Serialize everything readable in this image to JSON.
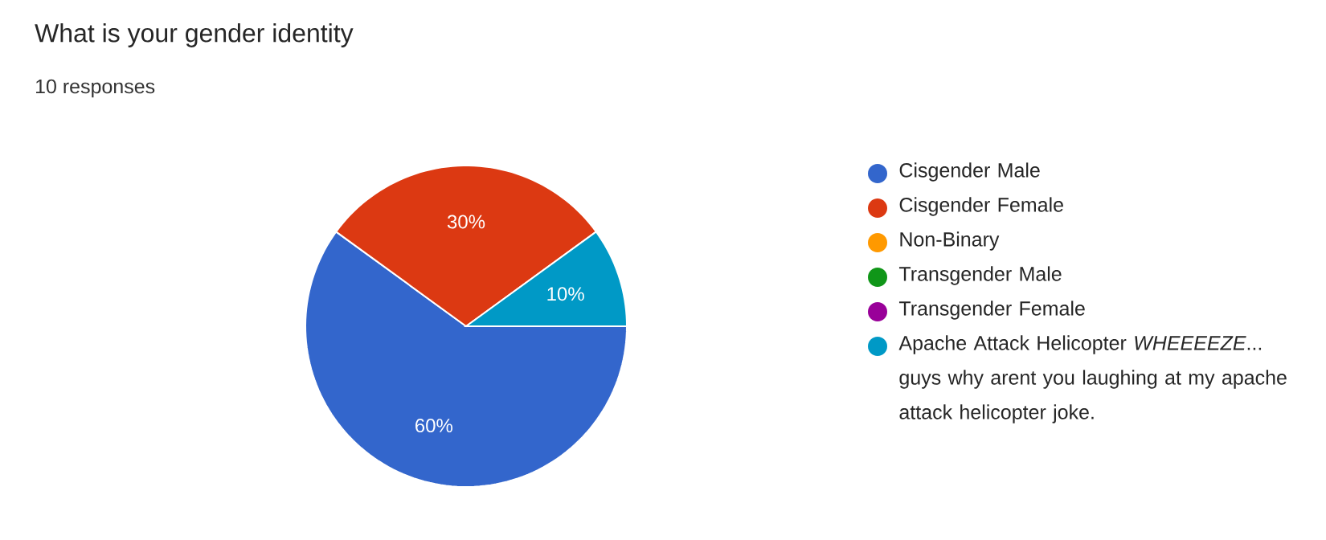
{
  "chart_data": {
    "type": "pie",
    "title": "What is your gender identity",
    "subtitle": "10 responses",
    "categories": [
      "Cisgender Male",
      "Cisgender Female",
      "Non-Binary",
      "Transgender Male",
      "Transgender Female",
      "Apache Attack Helicopter *WHEEEEZE*... guys why arent you laughing at my apache attack helicopter joke."
    ],
    "values": [
      60,
      30,
      0,
      0,
      0,
      10
    ],
    "colors": [
      "#3366cc",
      "#dc3912",
      "#ff9900",
      "#109618",
      "#990099",
      "#0099c6"
    ],
    "value_labels": [
      "60%",
      "30%",
      null,
      null,
      null,
      "10%"
    ],
    "legend": "right"
  }
}
